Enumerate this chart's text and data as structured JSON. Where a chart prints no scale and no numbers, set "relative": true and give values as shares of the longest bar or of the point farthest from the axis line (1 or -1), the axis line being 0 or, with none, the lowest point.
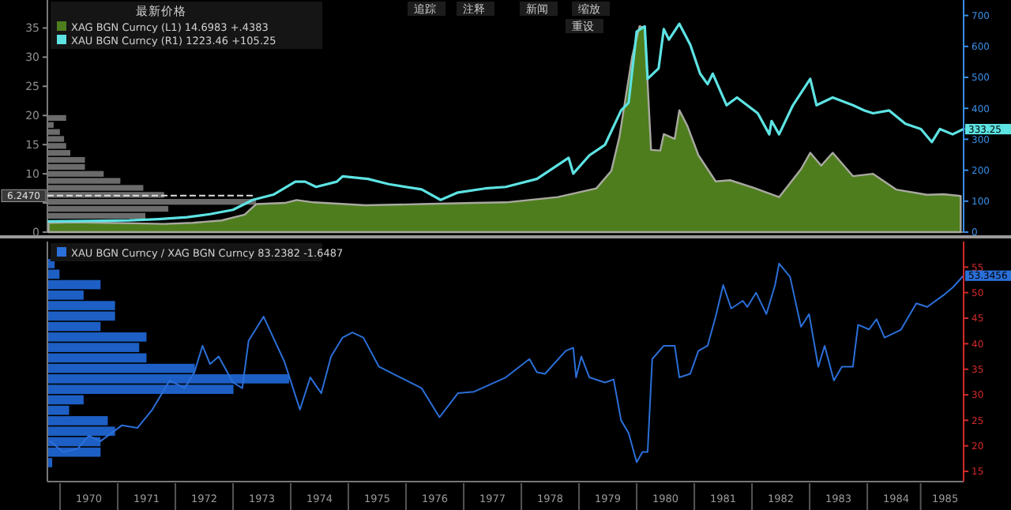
{
  "chart_data": [
    {
      "type": "area",
      "legend": "top left",
      "legend_title": "最新价格",
      "xlim": [
        1969.78,
        1985.67
      ],
      "ylim": [
        0,
        39.8
      ],
      "yticks": [
        0,
        {
          "value": 5,
          "label": null
        },
        10,
        15,
        20,
        25,
        30,
        35
      ],
      "y2lim": [
        0,
        750
      ],
      "y2ticks": [
        0,
        100,
        200,
        300,
        400,
        500,
        600,
        700
      ],
      "tick_labels": "y",
      "annotations": [
        "追踪",
        "注释",
        "新闻",
        "缩放",
        "重设"
      ],
      "ref_lines": [
        {
          "axis": "y",
          "value": 6.247,
          "label": "6.2470",
          "line_style": "dashed"
        }
      ],
      "series": [
        {
          "name": "XAG BGN Curncy  (L1) 14.6983  +.4383",
          "type": "area",
          "axis": "y",
          "color": "#4e7d1e",
          "x": [
            1969.8,
            1970.3,
            1970.8,
            1971.3,
            1971.8,
            1972.3,
            1972.8,
            1973.2,
            1973.4,
            1973.9,
            1974.1,
            1974.4,
            1975.3,
            1976.27,
            1977.18,
            1977.73,
            1978.63,
            1979.3,
            1979.56,
            1979.7,
            1979.92,
            1980.05,
            1980.14,
            1980.25,
            1980.41,
            1980.47,
            1980.66,
            1980.74,
            1980.88,
            1981.07,
            1981.37,
            1981.62,
            1982.03,
            1982.47,
            1982.85,
            1983.01,
            1983.2,
            1983.4,
            1983.75,
            1984.1,
            1984.5,
            1985.04,
            1985.32,
            1985.62
          ],
          "values": [
            1.6,
            1.7,
            1.6,
            1.5,
            1.4,
            1.6,
            2.0,
            3.0,
            4.8,
            5.0,
            5.5,
            5.1,
            4.6,
            4.8,
            5.0,
            5.1,
            6.0,
            7.5,
            10.5,
            16.3,
            30,
            35.3,
            35,
            14.1,
            14,
            16.8,
            16,
            20.9,
            18.2,
            13.2,
            8.7,
            8.9,
            7.6,
            6.0,
            10.8,
            13.6,
            11.4,
            13.6,
            9.6,
            10,
            7.3,
            6.4,
            6.5,
            6.2
          ]
        },
        {
          "name": "XAU BGN Curncy  (R1) 1223.46  +105.25",
          "type": "line",
          "axis": "y2",
          "color": "#5ee3e3",
          "x": [
            1969.8,
            1970.5,
            1971.2,
            1971.7,
            1972.2,
            1972.6,
            1973.0,
            1973.34,
            1973.7,
            1974.08,
            1974.25,
            1974.44,
            1974.8,
            1974.9,
            1975.34,
            1975.7,
            1976.27,
            1976.6,
            1976.9,
            1977.37,
            1977.73,
            1978.27,
            1978.82,
            1978.9,
            1979.18,
            1979.45,
            1979.73,
            1979.86,
            1980.0,
            1980.14,
            1980.19,
            1980.38,
            1980.47,
            1980.56,
            1980.74,
            1980.93,
            1981.1,
            1981.23,
            1981.32,
            1981.56,
            1981.74,
            1982.1,
            1982.3,
            1982.34,
            1982.47,
            1982.71,
            1983.01,
            1983.12,
            1983.4,
            1983.75,
            1983.95,
            1984.1,
            1984.38,
            1984.66,
            1984.93,
            1985.12,
            1985.26,
            1985.48,
            1985.67
          ],
          "values": [
            35,
            36,
            38,
            42,
            48,
            58,
            72,
            104,
            121,
            163,
            163,
            146,
            163,
            180,
            172,
            155,
            138,
            104,
            128,
            141,
            146,
            172,
            240,
            189,
            248,
            282,
            393,
            418,
            648,
            665,
            495,
            529,
            656,
            622,
            673,
            605,
            512,
            478,
            512,
            410,
            435,
            384,
            316,
            359,
            316,
            410,
            495,
            410,
            435,
            410,
            393,
            384,
            393,
            350,
            333,
            291,
            333,
            316,
            333.25
          ],
          "value_labels": [
            null,
            null,
            null,
            null,
            null,
            null,
            null,
            null,
            null,
            null,
            null,
            null,
            null,
            null,
            null,
            null,
            null,
            null,
            null,
            null,
            null,
            null,
            null,
            null,
            null,
            null,
            null,
            null,
            null,
            null,
            null,
            null,
            null,
            null,
            null,
            null,
            null,
            null,
            null,
            null,
            null,
            null,
            null,
            null,
            null,
            null,
            null,
            null,
            null,
            null,
            null,
            null,
            null,
            null,
            null,
            null,
            null,
            null,
            "333.25"
          ]
        }
      ]
    },
    {
      "type": "bar",
      "orientation": "horizontal",
      "relative": true,
      "color": "#6b6b6b",
      "categories": [
        null,
        null,
        null,
        null,
        null,
        null,
        null,
        null,
        null,
        null,
        null,
        null,
        null,
        null,
        null
      ],
      "values": [
        0.09,
        0.03,
        0.06,
        0.08,
        0.09,
        0.11,
        0.18,
        0.18,
        0.27,
        0.35,
        0.46,
        0.56,
        1.0,
        0.58,
        0.47
      ]
    },
    {
      "type": "line",
      "legend": "top left",
      "xlim": [
        1969.78,
        1985.67
      ],
      "y2lim": [
        13,
        60
      ],
      "y2ticks": [
        15,
        20,
        25,
        30,
        35,
        40,
        45,
        50,
        55
      ],
      "xticks": [
        {
          "value": 1970.5,
          "label": "1970"
        },
        {
          "value": 1971.5,
          "label": "1971"
        },
        {
          "value": 1972.5,
          "label": "1972"
        },
        {
          "value": 1973.5,
          "label": "1973"
        },
        {
          "value": 1974.5,
          "label": "1974"
        },
        {
          "value": 1975.5,
          "label": "1975"
        },
        {
          "value": 1976.5,
          "label": "1976"
        },
        {
          "value": 1977.5,
          "label": "1977"
        },
        {
          "value": 1978.5,
          "label": "1978"
        },
        {
          "value": 1979.5,
          "label": "1979"
        },
        {
          "value": 1980.5,
          "label": "1980"
        },
        {
          "value": 1981.5,
          "label": "1981"
        },
        {
          "value": 1982.5,
          "label": "1982"
        },
        {
          "value": 1983.5,
          "label": "1983"
        },
        {
          "value": 1984.5,
          "label": "1984"
        },
        {
          "value": 1985.35,
          "label": "1985"
        }
      ],
      "series": [
        {
          "name": "XAU BGN Curncy / XAG BGN Curncy 83.2382  -1.6487",
          "axis": "y2",
          "color": "#2b6fd8",
          "x": [
            1969.83,
            1970.05,
            1970.3,
            1970.5,
            1970.7,
            1971.07,
            1971.34,
            1971.6,
            1971.9,
            1972.16,
            1972.33,
            1972.47,
            1972.6,
            1972.75,
            1973.0,
            1973.16,
            1973.27,
            1973.53,
            1973.89,
            1974.16,
            1974.34,
            1974.53,
            1974.7,
            1974.9,
            1975.07,
            1975.26,
            1975.53,
            1975.9,
            1976.27,
            1976.58,
            1976.9,
            1977.18,
            1977.73,
            1978.14,
            1978.27,
            1978.41,
            1978.77,
            1978.9,
            1978.95,
            1979.04,
            1979.18,
            1979.45,
            1979.6,
            1979.73,
            1979.86,
            1980.0,
            1980.1,
            1980.19,
            1980.27,
            1980.47,
            1980.66,
            1980.74,
            1980.93,
            1981.07,
            1981.23,
            1981.37,
            1981.5,
            1981.64,
            1981.84,
            1981.92,
            1982.07,
            1982.25,
            1982.4,
            1982.47,
            1982.66,
            1982.85,
            1982.99,
            1983.15,
            1983.26,
            1983.42,
            1983.56,
            1983.75,
            1983.84,
            1984.03,
            1984.16,
            1984.3,
            1984.58,
            1984.85,
            1985.04,
            1985.32,
            1985.48,
            1985.67
          ],
          "values": [
            20.9,
            18.8,
            19.4,
            22,
            20.9,
            24,
            23.5,
            27.1,
            32.8,
            31.3,
            34.4,
            39.6,
            36,
            37.5,
            32.4,
            31.3,
            40.6,
            45.3,
            36.5,
            27.1,
            33.4,
            30.3,
            37.5,
            41.2,
            42.2,
            41.2,
            35.5,
            33.4,
            31.3,
            25.6,
            30.3,
            30.6,
            33.4,
            37,
            34.4,
            34.1,
            38.6,
            39.2,
            33.4,
            37.5,
            33.4,
            32.4,
            33,
            25,
            22.5,
            16.8,
            18.8,
            18.8,
            37,
            39.6,
            39.6,
            33.4,
            34.1,
            38.6,
            39.6,
            45.3,
            51.5,
            46.9,
            48.4,
            47.2,
            50,
            45.8,
            51.5,
            55.7,
            53.1,
            43.3,
            45.8,
            35.5,
            39.6,
            32.8,
            35.5,
            35.5,
            43.7,
            42.8,
            44.8,
            41.2,
            42.7,
            47.9,
            47.2,
            49.5,
            51,
            53.3456
          ],
          "value_labels": [
            null,
            null,
            null,
            null,
            null,
            null,
            null,
            null,
            null,
            null,
            null,
            null,
            null,
            null,
            null,
            null,
            null,
            null,
            null,
            null,
            null,
            null,
            null,
            null,
            null,
            null,
            null,
            null,
            null,
            null,
            null,
            null,
            null,
            null,
            null,
            null,
            null,
            null,
            null,
            null,
            null,
            null,
            null,
            null,
            null,
            null,
            null,
            null,
            null,
            null,
            null,
            null,
            null,
            null,
            null,
            null,
            null,
            null,
            null,
            null,
            null,
            null,
            null,
            null,
            null,
            null,
            null,
            null,
            null,
            null,
            null,
            null,
            null,
            null,
            null,
            null,
            null,
            null,
            null,
            null,
            null,
            "53.3456"
          ]
        }
      ]
    },
    {
      "type": "bar",
      "orientation": "horizontal",
      "relative": true,
      "color": "#1d5fc4",
      "categories": [
        null,
        null,
        null,
        null,
        null,
        null,
        null,
        null,
        null,
        null,
        null,
        null,
        null,
        null,
        null,
        null,
        null,
        null,
        null,
        null
      ],
      "values": [
        0.03,
        0.05,
        0.22,
        0.15,
        0.28,
        0.28,
        0.22,
        0.41,
        0.38,
        0.41,
        0.61,
        1.0,
        0.77,
        0.15,
        0.09,
        0.25,
        0.28,
        0.22,
        0.22,
        0.02
      ]
    }
  ]
}
